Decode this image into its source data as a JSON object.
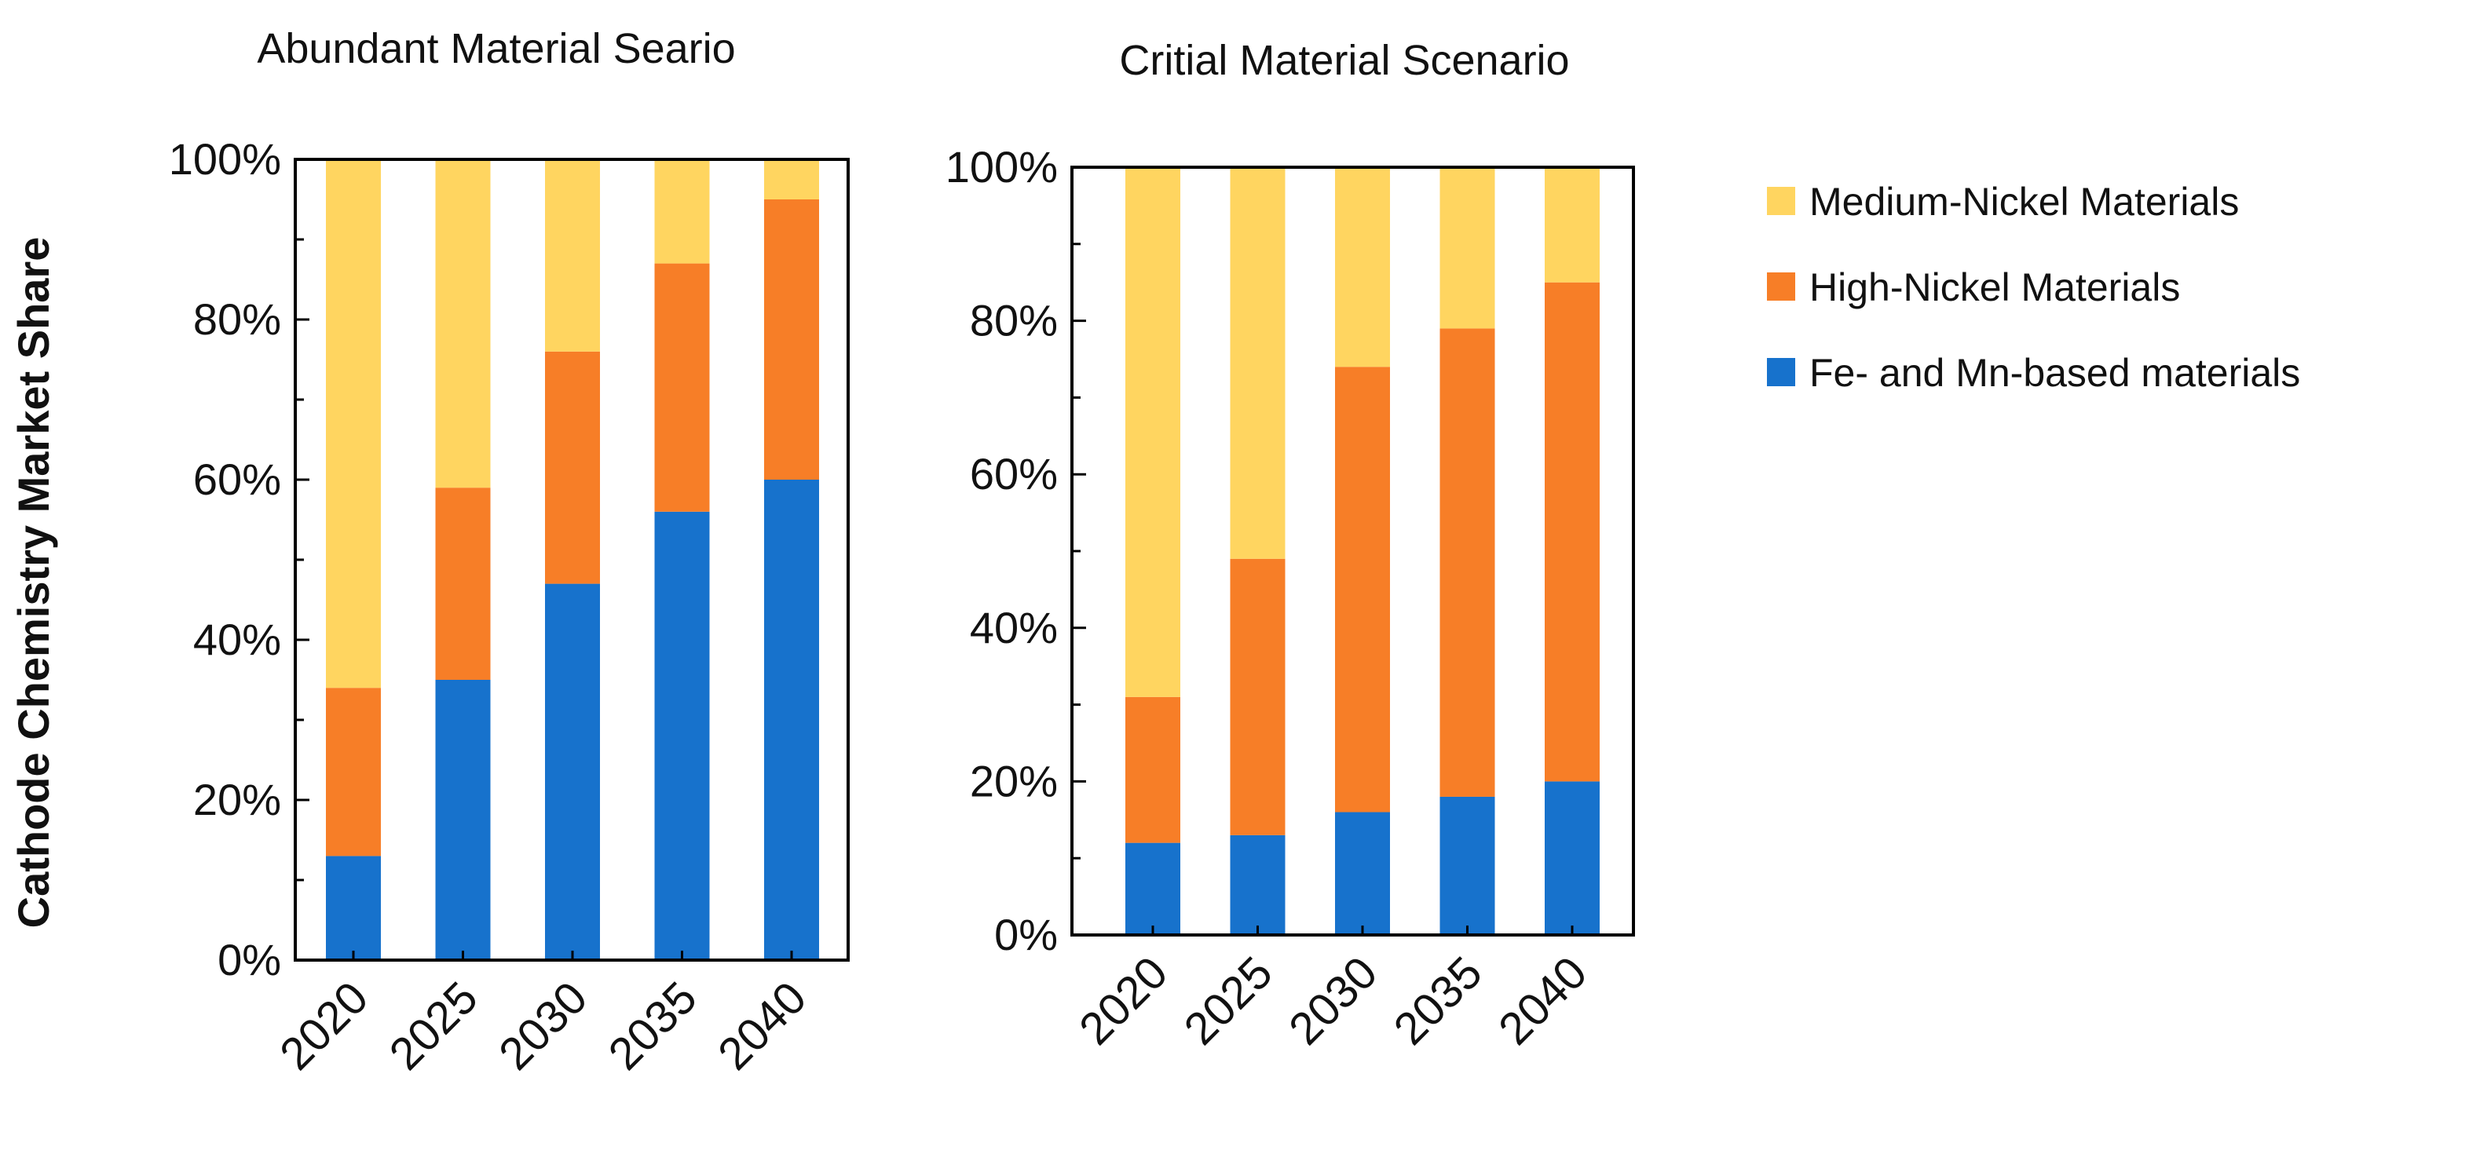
{
  "ylabel": "Cathode Chemistry Market Share",
  "legend_placement": "right",
  "legend": [
    {
      "name": "Medium-Nickel Materials",
      "color": "#FFD560"
    },
    {
      "name": "High-Nickel Materials",
      "color": "#F77E27"
    },
    {
      "name": "Fe- and Mn-based materials",
      "color": "#1772CC"
    }
  ],
  "chart_data": [
    {
      "type": "bar",
      "stacked": true,
      "title": "Abundant Material Seario",
      "xlabel": "",
      "ylabel": "Cathode Chemistry Market Share",
      "ylim": [
        0,
        100
      ],
      "y_ticks": [
        "0%",
        "20%",
        "40%",
        "60%",
        "80%",
        "100%"
      ],
      "categories": [
        "2020",
        "2025",
        "2030",
        "2035",
        "2040"
      ],
      "series": [
        {
          "name": "Fe- and Mn-based materials",
          "color": "#1772CC",
          "values": [
            13,
            35,
            47,
            56,
            60
          ]
        },
        {
          "name": "High-Nickel Materials",
          "color": "#F77E27",
          "values": [
            21,
            24,
            29,
            31,
            35
          ]
        },
        {
          "name": "Medium-Nickel Materials",
          "color": "#FFD560",
          "values": [
            66,
            41,
            24,
            13,
            5
          ]
        }
      ]
    },
    {
      "type": "bar",
      "stacked": true,
      "title": "Critial Material Scenario",
      "xlabel": "",
      "ylabel": "",
      "ylim": [
        0,
        100
      ],
      "y_ticks": [
        "0%",
        "20%",
        "40%",
        "60%",
        "80%",
        "100%"
      ],
      "categories": [
        "2020",
        "2025",
        "2030",
        "2035",
        "2040"
      ],
      "series": [
        {
          "name": "Fe- and Mn-based materials",
          "color": "#1772CC",
          "values": [
            12,
            13,
            16,
            18,
            20
          ]
        },
        {
          "name": "High-Nickel Materials",
          "color": "#F77E27",
          "values": [
            19,
            36,
            58,
            61,
            65
          ]
        },
        {
          "name": "Medium-Nickel Materials",
          "color": "#FFD560",
          "values": [
            69,
            51,
            26,
            21,
            15
          ]
        }
      ]
    }
  ]
}
